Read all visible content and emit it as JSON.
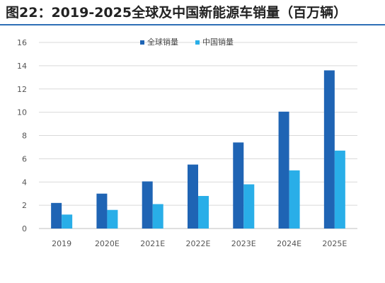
{
  "title": "图22：2019-2025全球及中国新能源车销量（百万辆）",
  "colors": {
    "global": "#1f64b4",
    "china": "#29aee8",
    "grid": "#d9d9d9",
    "axis": "#bfbfbf",
    "title_rule": "#2e6fb6"
  },
  "chart_data": {
    "type": "bar",
    "title": "",
    "xlabel": "",
    "ylabel": "",
    "categories": [
      "2019",
      "2020E",
      "2021E",
      "2022E",
      "2023E",
      "2024E",
      "2025E"
    ],
    "series": [
      {
        "name": "全球销量",
        "values": [
          2.2,
          3.0,
          4.05,
          5.5,
          7.4,
          10.05,
          13.6
        ]
      },
      {
        "name": "中国销量",
        "values": [
          1.2,
          1.6,
          2.1,
          2.8,
          3.8,
          5.0,
          6.7
        ]
      }
    ],
    "ylim": [
      0,
      16
    ],
    "yticks": [
      0,
      2,
      4,
      6,
      8,
      10,
      12,
      14,
      16
    ],
    "grid": true,
    "legend_position": "top-center"
  }
}
